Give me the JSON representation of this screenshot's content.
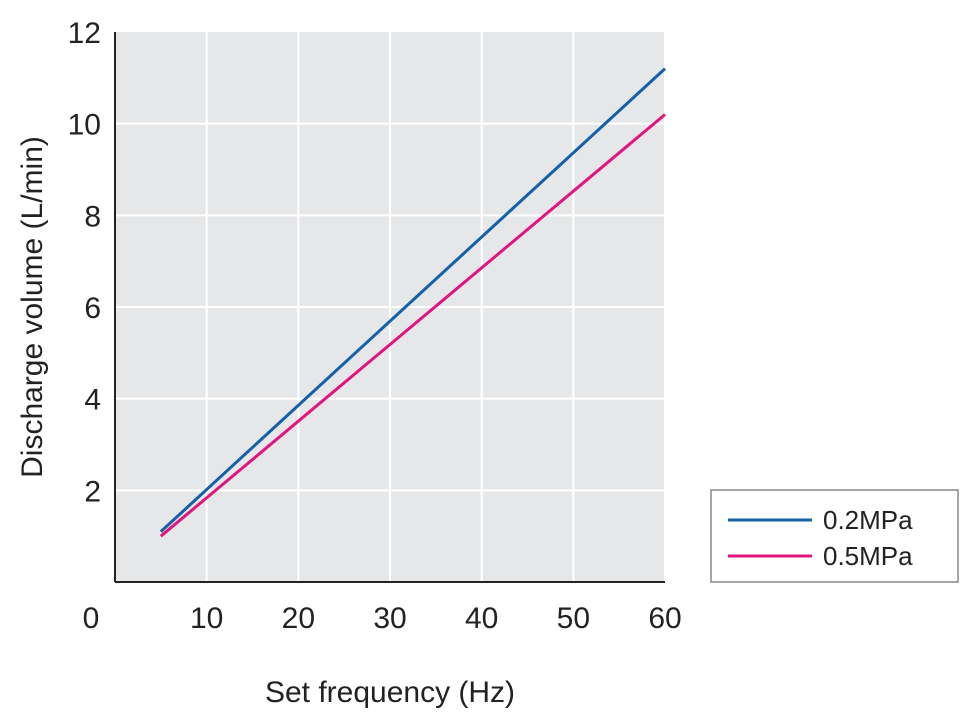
{
  "chart_data": {
    "type": "line",
    "title": "",
    "xlabel": "Set frequency (Hz)",
    "ylabel": "Discharge volume (L/min)",
    "xlim": [
      0,
      60
    ],
    "ylim": [
      0,
      12
    ],
    "xticks": [
      "0",
      "10",
      "20",
      "30",
      "40",
      "50",
      "60"
    ],
    "yticks": [
      "2",
      "4",
      "6",
      "8",
      "10",
      "12"
    ],
    "grid": true,
    "legend_position": "bottom-right, outside plot",
    "series": [
      {
        "name": "0.2MPa",
        "color": "#1560a8",
        "x": [
          5,
          60
        ],
        "y": [
          1.1,
          11.2
        ]
      },
      {
        "name": "0.5MPa",
        "color": "#e0157f",
        "x": [
          5,
          60
        ],
        "y": [
          1.0,
          10.2
        ]
      }
    ],
    "plot_background": "#e6e7e8"
  }
}
